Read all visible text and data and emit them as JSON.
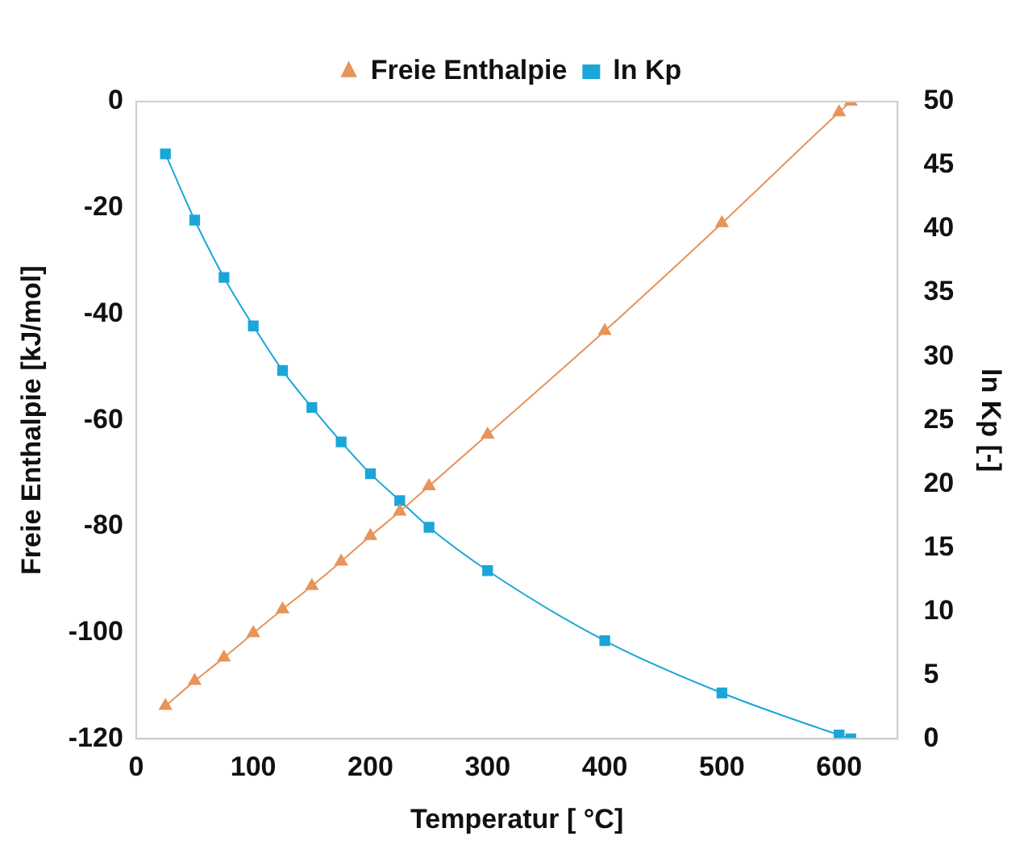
{
  "chart_data": {
    "type": "line",
    "xlabel": "Temperatur [ °C]",
    "ylabel": "Freie Enthalpie [kJ/mol]",
    "y2label": "ln Kp [-]",
    "xlim": [
      0,
      650
    ],
    "xticks": [
      0,
      100,
      200,
      300,
      400,
      500,
      600
    ],
    "ylim": [
      -120,
      0
    ],
    "yticks": [
      -120,
      -100,
      -80,
      -60,
      -40,
      -20,
      0
    ],
    "y2lim": [
      0,
      50
    ],
    "y2ticks": [
      0,
      5,
      10,
      15,
      20,
      25,
      30,
      35,
      40,
      45,
      50
    ],
    "grid": false,
    "legend": "top",
    "line_style": "solid",
    "series": [
      {
        "name": "Freie Enthalpie",
        "color": "#e8935a",
        "marker": "triangle",
        "x": [
          25,
          50,
          75,
          100,
          125,
          150,
          175,
          200,
          225,
          250,
          300,
          400,
          500,
          600,
          610
        ],
        "values": [
          -113.8,
          -109.1,
          -104.7,
          -100.1,
          -95.6,
          -91.2,
          -86.6,
          -81.8,
          -77.2,
          -72.4,
          -62.7,
          -43.2,
          -22.9,
          -2.0,
          0
        ]
      },
      {
        "name": "ln Kp",
        "color": "#1ba6d8",
        "marker": "square",
        "axis": "y2",
        "x": [
          25,
          50,
          75,
          100,
          125,
          150,
          175,
          200,
          225,
          250,
          300,
          400,
          500,
          600,
          610
        ],
        "values": [
          45.9,
          40.7,
          36.2,
          32.4,
          28.9,
          26.0,
          23.3,
          20.8,
          18.7,
          16.6,
          13.2,
          7.7,
          3.6,
          0.3,
          0
        ]
      }
    ]
  }
}
